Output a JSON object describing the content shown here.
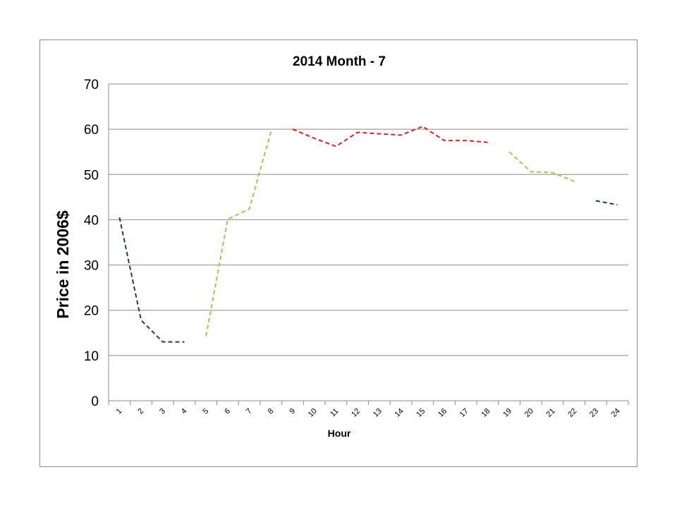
{
  "chart_data": {
    "type": "line",
    "title": "2014 Month - 7",
    "xlabel": "Hour",
    "ylabel": "Price in 2006$",
    "categories": [
      "1",
      "2",
      "3",
      "4",
      "5",
      "6",
      "7",
      "8",
      "9",
      "10",
      "11",
      "12",
      "13",
      "14",
      "15",
      "16",
      "17",
      "18",
      "19",
      "20",
      "21",
      "22",
      "23",
      "24"
    ],
    "yticks": [
      "0",
      "10",
      "20",
      "30",
      "40",
      "50",
      "60",
      "70"
    ],
    "ylim": [
      0,
      70
    ],
    "grid": true,
    "legend": "none",
    "line_style": "dashed",
    "segments": [
      {
        "color": "#1f3864",
        "x": [
          1,
          2,
          3,
          4
        ],
        "values": [
          40.5,
          17.8,
          13.0,
          13.0
        ]
      },
      {
        "color": "#92d050",
        "x": [
          5,
          6,
          7,
          8
        ],
        "values": [
          14.3,
          40.1,
          42.4,
          59.5
        ]
      },
      {
        "color": "#e02020",
        "x": [
          9,
          10,
          11,
          12,
          13,
          14,
          15,
          16,
          17,
          18
        ],
        "values": [
          60.0,
          58.0,
          56.2,
          59.3,
          59.0,
          58.7,
          60.6,
          57.5,
          57.5,
          57.1
        ]
      },
      {
        "color": "#92d050",
        "x": [
          19,
          20,
          21,
          22
        ],
        "values": [
          55.0,
          50.6,
          50.4,
          48.5
        ]
      },
      {
        "color": "#1f3864",
        "x": [
          23,
          24
        ],
        "values": [
          44.2,
          43.3
        ]
      }
    ]
  }
}
